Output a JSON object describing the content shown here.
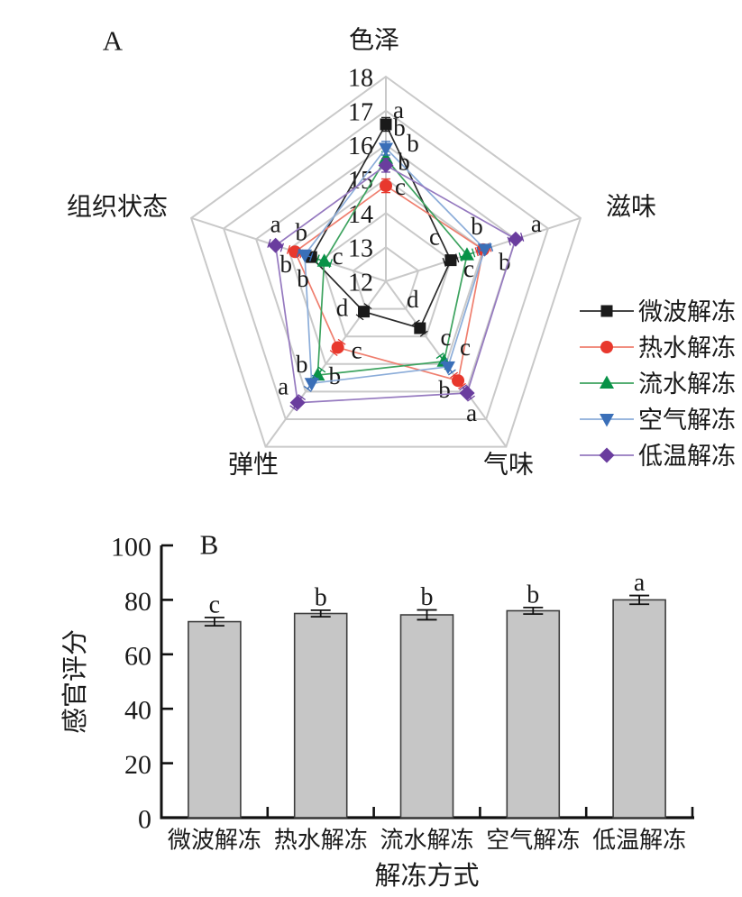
{
  "figure": {
    "background": "#ffffff",
    "panel_a_label": "A",
    "panel_b_label": "B"
  },
  "chart_data": [
    {
      "type": "radar",
      "panel_label": "A",
      "axes": [
        "色泽",
        "滋味",
        "气味",
        "弹性",
        "组织状态"
      ],
      "rmin": 12,
      "rmax": 18,
      "ring_step": 1,
      "radial_tick_labels": [
        "12",
        "13",
        "14",
        "15",
        "16",
        "17",
        "18"
      ],
      "grid_color": "#c9c9c9",
      "legend_position": "right",
      "error_bar_units": 0.2,
      "series": [
        {
          "name": "微波解冻",
          "marker": "square",
          "color": "#1a1a1a",
          "line_color": "#2b2b2b",
          "values": [
            16.6,
            14.0,
            13.7,
            13.1,
            14.3
          ],
          "letters": [
            "a",
            "c",
            "d",
            "d",
            "b"
          ],
          "letter_offsets": [
            [
              14,
              -16
            ],
            [
              -18,
              -26
            ],
            [
              -8,
              -32
            ],
            [
              -24,
              -4
            ],
            [
              -28,
              8
            ]
          ]
        },
        {
          "name": "热水解冻",
          "marker": "circle",
          "color": "#e8382d",
          "line_color": "#ef7e6e",
          "values": [
            14.8,
            15.0,
            15.6,
            14.4,
            14.8
          ],
          "letters": [
            "c",
            "b",
            "b",
            "c",
            "b"
          ],
          "letter_offsets": [
            [
              16,
              1
            ],
            [
              -7,
              -26
            ],
            [
              -15,
              10
            ],
            [
              21,
              3
            ],
            [
              7,
              -22
            ]
          ]
        },
        {
          "name": "流水解冻",
          "marker": "triangle-up",
          "color": "#089247",
          "line_color": "#3da35f",
          "values": [
            15.6,
            14.5,
            14.9,
            15.4,
            13.9
          ],
          "letters": [
            "b",
            "c",
            "c",
            "b",
            "c"
          ],
          "letter_offsets": [
            [
              30,
              -17
            ],
            [
              2,
              15
            ],
            [
              2,
              -27
            ],
            [
              19,
              1
            ],
            [
              15,
              -6
            ]
          ]
        },
        {
          "name": "空气解冻",
          "marker": "triangle-down",
          "color": "#3a6fb8",
          "line_color": "#8cadd9",
          "values": [
            15.9,
            15.05,
            15.1,
            15.7,
            14.5
          ],
          "letters": [
            "b",
            "b",
            "c",
            "b",
            "b"
          ],
          "letter_offsets": [
            [
              15,
              -23
            ],
            [
              22,
              14
            ],
            [
              19,
              -22
            ],
            [
              -11,
              -21
            ],
            [
              -2,
              26
            ]
          ]
        },
        {
          "name": "低温解冻",
          "marker": "diamond",
          "color": "#6a3d9e",
          "line_color": "#9579bf",
          "values": [
            15.4,
            16.0,
            16.05,
            16.4,
            15.4
          ],
          "letters": [
            "b",
            "a",
            "a",
            "a",
            "a"
          ],
          "letter_offsets": [
            [
              20,
              -4
            ],
            [
              23,
              -17
            ],
            [
              5,
              22
            ],
            [
              -16,
              -18
            ],
            [
              0,
              -24
            ]
          ]
        }
      ]
    },
    {
      "type": "bar",
      "panel_label": "B",
      "categories": [
        "微波解冻",
        "热水解冻",
        "流水解冻",
        "空气解冻",
        "低温解冻"
      ],
      "values": [
        72,
        75,
        74.5,
        76,
        80
      ],
      "errors": [
        1.5,
        1.2,
        1.8,
        1.2,
        1.6
      ],
      "letters": [
        "c",
        "b",
        "b",
        "b",
        "a"
      ],
      "title": "",
      "xlabel": "解冻方式",
      "ylabel": "感官评分",
      "ylim": [
        0,
        100
      ],
      "yticks": [
        0,
        20,
        40,
        60,
        80,
        100
      ],
      "grid": false,
      "bar_fill": "#c6c6c6",
      "bar_stroke": "#3d3d3d"
    }
  ]
}
